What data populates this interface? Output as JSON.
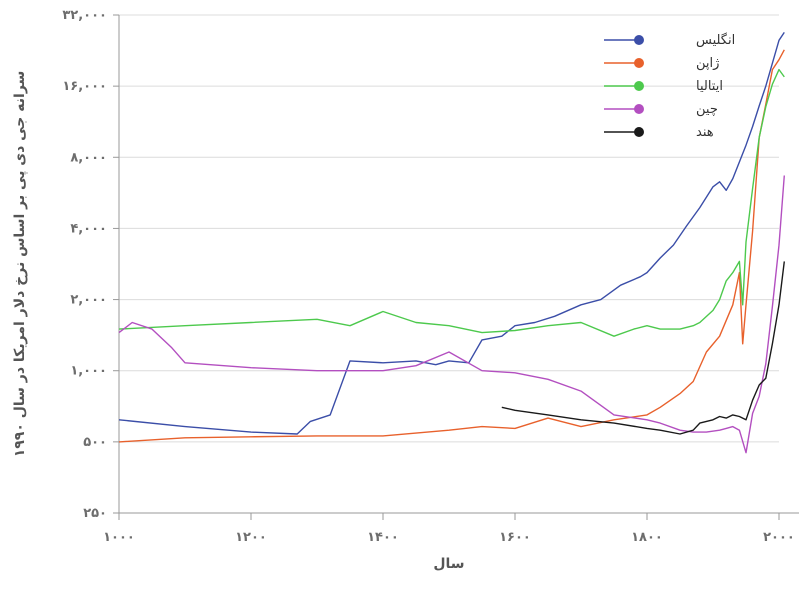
{
  "chart_data": {
    "type": "line",
    "xlabel": "سال",
    "ylabel": "سرانه جی دی پی بر اساس نرخ دلار امریکا در سال ۱۹۹۰",
    "x_ticks": [
      1000,
      1200,
      1400,
      1600,
      1800,
      2000
    ],
    "x_tick_labels": [
      "۱۰۰۰",
      "۱۲۰۰",
      "۱۴۰۰",
      "۱۶۰۰",
      "۱۸۰۰",
      "۲۰۰۰"
    ],
    "xlim": [
      1000,
      2000
    ],
    "y_scale": "log",
    "y_ticks": [
      250,
      500,
      1000,
      2000,
      4000,
      8000,
      16000,
      32000
    ],
    "y_tick_labels": [
      "۲۵۰",
      "۵۰۰",
      "۱,۰۰۰",
      "۲,۰۰۰",
      "۴,۰۰۰",
      "۸,۰۰۰",
      "۱۶,۰۰۰",
      "۳۲,۰۰۰"
    ],
    "ylim": [
      250,
      32000
    ],
    "grid": "horizontal",
    "legend_position": "top-right",
    "series": [
      {
        "name": "انگلیس",
        "color": "#3b4ea8",
        "points": [
          [
            1000,
            620
          ],
          [
            1100,
            580
          ],
          [
            1200,
            550
          ],
          [
            1270,
            540
          ],
          [
            1290,
            610
          ],
          [
            1320,
            650
          ],
          [
            1350,
            1100
          ],
          [
            1400,
            1080
          ],
          [
            1450,
            1100
          ],
          [
            1480,
            1060
          ],
          [
            1500,
            1100
          ],
          [
            1530,
            1080
          ],
          [
            1550,
            1350
          ],
          [
            1580,
            1400
          ],
          [
            1600,
            1550
          ],
          [
            1630,
            1600
          ],
          [
            1660,
            1700
          ],
          [
            1700,
            1900
          ],
          [
            1730,
            2000
          ],
          [
            1760,
            2300
          ],
          [
            1790,
            2500
          ],
          [
            1800,
            2600
          ],
          [
            1820,
            3000
          ],
          [
            1840,
            3400
          ],
          [
            1860,
            4100
          ],
          [
            1880,
            4900
          ],
          [
            1900,
            6000
          ],
          [
            1910,
            6300
          ],
          [
            1920,
            5800
          ],
          [
            1930,
            6500
          ],
          [
            1950,
            9000
          ],
          [
            1960,
            10800
          ],
          [
            1970,
            13200
          ],
          [
            1980,
            16000
          ],
          [
            1990,
            20000
          ],
          [
            2000,
            25000
          ],
          [
            2008,
            27000
          ]
        ]
      },
      {
        "name": "ژاپن",
        "color": "#e8612c",
        "points": [
          [
            1000,
            500
          ],
          [
            1100,
            520
          ],
          [
            1200,
            525
          ],
          [
            1300,
            530
          ],
          [
            1400,
            530
          ],
          [
            1500,
            560
          ],
          [
            1550,
            580
          ],
          [
            1600,
            570
          ],
          [
            1650,
            630
          ],
          [
            1700,
            580
          ],
          [
            1750,
            620
          ],
          [
            1800,
            650
          ],
          [
            1820,
            700
          ],
          [
            1850,
            800
          ],
          [
            1870,
            900
          ],
          [
            1890,
            1200
          ],
          [
            1910,
            1400
          ],
          [
            1930,
            1900
          ],
          [
            1940,
            2600
          ],
          [
            1945,
            1300
          ],
          [
            1950,
            1900
          ],
          [
            1960,
            3900
          ],
          [
            1970,
            9700
          ],
          [
            1980,
            13400
          ],
          [
            1990,
            18800
          ],
          [
            2000,
            20700
          ],
          [
            2008,
            22800
          ]
        ]
      },
      {
        "name": "ایتالیا",
        "color": "#4dc94d",
        "points": [
          [
            1000,
            1500
          ],
          [
            1100,
            1550
          ],
          [
            1200,
            1600
          ],
          [
            1300,
            1650
          ],
          [
            1350,
            1550
          ],
          [
            1400,
            1780
          ],
          [
            1450,
            1600
          ],
          [
            1500,
            1550
          ],
          [
            1550,
            1450
          ],
          [
            1600,
            1480
          ],
          [
            1650,
            1550
          ],
          [
            1700,
            1600
          ],
          [
            1750,
            1400
          ],
          [
            1780,
            1500
          ],
          [
            1800,
            1550
          ],
          [
            1820,
            1500
          ],
          [
            1850,
            1500
          ],
          [
            1870,
            1550
          ],
          [
            1880,
            1600
          ],
          [
            1900,
            1800
          ],
          [
            1910,
            2000
          ],
          [
            1920,
            2400
          ],
          [
            1930,
            2600
          ],
          [
            1940,
            2900
          ],
          [
            1945,
            1900
          ],
          [
            1950,
            3500
          ],
          [
            1960,
            5900
          ],
          [
            1970,
            9700
          ],
          [
            1980,
            13100
          ],
          [
            1990,
            16300
          ],
          [
            2000,
            18800
          ],
          [
            2008,
            17500
          ]
        ]
      },
      {
        "name": "چین",
        "color": "#b34fc0",
        "points": [
          [
            1000,
            1450
          ],
          [
            1020,
            1600
          ],
          [
            1050,
            1500
          ],
          [
            1080,
            1250
          ],
          [
            1100,
            1080
          ],
          [
            1200,
            1030
          ],
          [
            1300,
            1000
          ],
          [
            1400,
            1000
          ],
          [
            1450,
            1050
          ],
          [
            1500,
            1200
          ],
          [
            1550,
            1000
          ],
          [
            1600,
            980
          ],
          [
            1650,
            920
          ],
          [
            1700,
            820
          ],
          [
            1750,
            650
          ],
          [
            1800,
            620
          ],
          [
            1820,
            600
          ],
          [
            1850,
            560
          ],
          [
            1870,
            550
          ],
          [
            1890,
            550
          ],
          [
            1910,
            560
          ],
          [
            1920,
            570
          ],
          [
            1930,
            580
          ],
          [
            1940,
            560
          ],
          [
            1950,
            450
          ],
          [
            1960,
            660
          ],
          [
            1970,
            780
          ],
          [
            1980,
            1070
          ],
          [
            1990,
            1870
          ],
          [
            2000,
            3400
          ],
          [
            2008,
            6700
          ]
        ]
      },
      {
        "name": "هند",
        "color": "#1a1a1a",
        "points": [
          [
            1580,
            700
          ],
          [
            1600,
            680
          ],
          [
            1650,
            650
          ],
          [
            1700,
            620
          ],
          [
            1750,
            600
          ],
          [
            1800,
            570
          ],
          [
            1820,
            560
          ],
          [
            1850,
            540
          ],
          [
            1870,
            560
          ],
          [
            1880,
            600
          ],
          [
            1890,
            610
          ],
          [
            1900,
            620
          ],
          [
            1910,
            640
          ],
          [
            1920,
            630
          ],
          [
            1930,
            650
          ],
          [
            1940,
            640
          ],
          [
            1950,
            620
          ],
          [
            1960,
            750
          ],
          [
            1970,
            870
          ],
          [
            1980,
            930
          ],
          [
            1990,
            1300
          ],
          [
            2000,
            1900
          ],
          [
            2008,
            2900
          ]
        ]
      }
    ]
  }
}
